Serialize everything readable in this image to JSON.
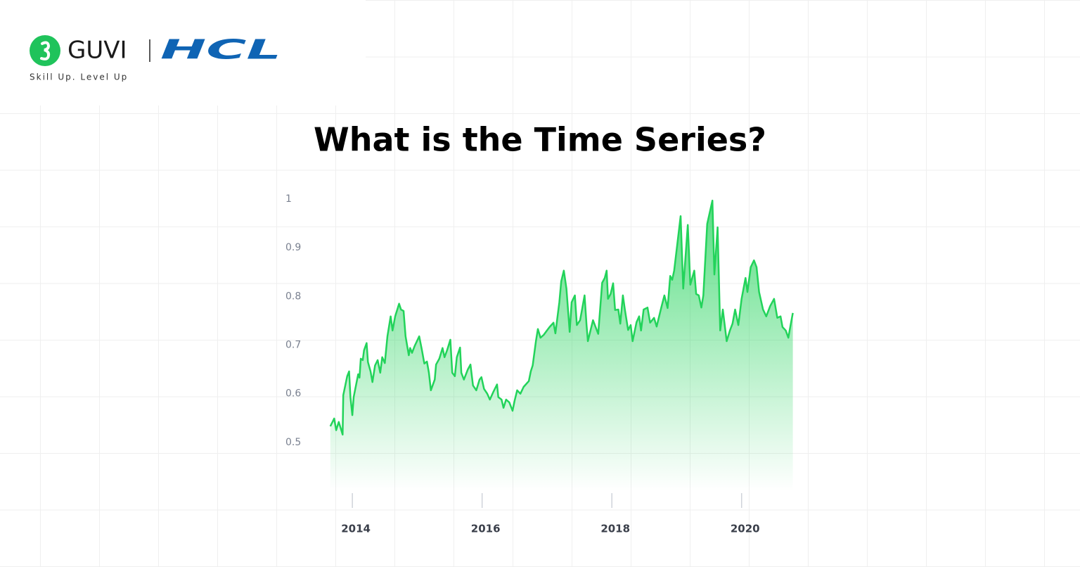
{
  "logo": {
    "brand": "GUVI",
    "partner": "HCL",
    "tagline": "Skill Up. Level Up"
  },
  "chart_data": {
    "type": "area",
    "title": "What is the Time Series?",
    "xlim": [
      2013.5,
      2021
    ],
    "xticks": [
      2014,
      2016,
      2018,
      2020
    ],
    "ylim": [
      0.4,
      1
    ],
    "yticks": [
      0.5,
      0.6,
      0.7,
      0.8,
      0.9,
      1
    ],
    "grid": false,
    "series": [
      {
        "color": "#22d35a",
        "x": [
          2013.66,
          2013.72,
          2013.75,
          2013.79,
          2013.85,
          2013.86,
          2013.92,
          2013.95,
          2013.97,
          2014.0,
          2014.02,
          2014.09,
          2014.11,
          2014.13,
          2014.16,
          2014.18,
          2014.22,
          2014.24,
          2014.28,
          2014.31,
          2014.35,
          2014.39,
          2014.43,
          2014.46,
          2014.5,
          2014.54,
          2014.59,
          2014.62,
          2014.66,
          2014.72,
          2014.75,
          2014.79,
          2014.82,
          2014.87,
          2014.89,
          2014.92,
          2014.96,
          2015.03,
          2015.07,
          2015.11,
          2015.15,
          2015.18,
          2015.21,
          2015.27,
          2015.29,
          2015.34,
          2015.39,
          2015.42,
          2015.46,
          2015.51,
          2015.54,
          2015.58,
          2015.61,
          2015.66,
          2015.68,
          2015.72,
          2015.78,
          2015.82,
          2015.86,
          2015.91,
          2015.96,
          2015.99,
          2016.03,
          2016.08,
          2016.12,
          2016.17,
          2016.23,
          2016.25,
          2016.3,
          2016.33,
          2016.37,
          2016.42,
          2016.47,
          2016.5,
          2016.54,
          2016.59,
          2016.64,
          2016.72,
          2016.75,
          2016.78,
          2016.83,
          2016.86,
          2016.9,
          2016.95,
          2017.0,
          2017.04,
          2017.1,
          2017.13,
          2017.19,
          2017.22,
          2017.26,
          2017.3,
          2017.35,
          2017.38,
          2017.43,
          2017.46,
          2017.51,
          2017.54,
          2017.58,
          2017.61,
          2017.63,
          2017.67,
          2017.71,
          2017.75,
          2017.79,
          2017.85,
          2017.89,
          2017.92,
          2017.94,
          2017.98,
          2018.02,
          2018.05,
          2018.1,
          2018.13,
          2018.17,
          2018.2,
          2018.25,
          2018.29,
          2018.32,
          2018.38,
          2018.42,
          2018.45,
          2018.49,
          2018.55,
          2018.59,
          2018.65,
          2018.69,
          2018.76,
          2018.81,
          2018.86,
          2018.9,
          2018.93,
          2018.96,
          2019.06,
          2019.1,
          2019.17,
          2019.21,
          2019.27,
          2019.3,
          2019.34,
          2019.38,
          2019.41,
          2019.47,
          2019.55,
          2019.58,
          2019.63,
          2019.67,
          2019.71,
          2019.77,
          2019.82,
          2019.86,
          2019.9,
          2019.95,
          2020.0,
          2020.06,
          2020.09,
          2020.14,
          2020.19,
          2020.23,
          2020.27,
          2020.33,
          2020.38,
          2020.44,
          2020.5,
          2020.55,
          2020.6,
          2020.63,
          2020.68,
          2020.72,
          2020.75,
          2020.79
        ],
        "values": [
          0.533,
          0.549,
          0.525,
          0.542,
          0.516,
          0.597,
          0.636,
          0.646,
          0.593,
          0.556,
          0.593,
          0.64,
          0.633,
          0.672,
          0.669,
          0.689,
          0.704,
          0.665,
          0.646,
          0.624,
          0.658,
          0.669,
          0.643,
          0.675,
          0.663,
          0.718,
          0.759,
          0.73,
          0.759,
          0.785,
          0.773,
          0.77,
          0.718,
          0.679,
          0.694,
          0.684,
          0.698,
          0.718,
          0.691,
          0.662,
          0.666,
          0.643,
          0.607,
          0.629,
          0.66,
          0.672,
          0.694,
          0.675,
          0.689,
          0.711,
          0.643,
          0.636,
          0.675,
          0.695,
          0.643,
          0.629,
          0.65,
          0.66,
          0.617,
          0.607,
          0.629,
          0.634,
          0.61,
          0.6,
          0.588,
          0.603,
          0.619,
          0.593,
          0.588,
          0.571,
          0.588,
          0.582,
          0.565,
          0.585,
          0.607,
          0.6,
          0.614,
          0.626,
          0.646,
          0.658,
          0.708,
          0.733,
          0.715,
          0.721,
          0.73,
          0.737,
          0.746,
          0.724,
          0.788,
          0.831,
          0.853,
          0.816,
          0.727,
          0.788,
          0.802,
          0.741,
          0.751,
          0.773,
          0.802,
          0.741,
          0.708,
          0.73,
          0.751,
          0.737,
          0.723,
          0.828,
          0.838,
          0.853,
          0.795,
          0.805,
          0.827,
          0.772,
          0.773,
          0.744,
          0.802,
          0.773,
          0.731,
          0.741,
          0.708,
          0.747,
          0.759,
          0.73,
          0.773,
          0.777,
          0.746,
          0.756,
          0.738,
          0.776,
          0.802,
          0.776,
          0.842,
          0.834,
          0.853,
          0.965,
          0.816,
          0.947,
          0.824,
          0.853,
          0.805,
          0.802,
          0.777,
          0.802,
          0.949,
          0.997,
          0.845,
          0.942,
          0.73,
          0.773,
          0.708,
          0.73,
          0.744,
          0.773,
          0.741,
          0.795,
          0.838,
          0.809,
          0.86,
          0.874,
          0.86,
          0.809,
          0.773,
          0.759,
          0.78,
          0.795,
          0.756,
          0.759,
          0.737,
          0.73,
          0.715,
          0.737,
          0.766
        ]
      }
    ]
  }
}
